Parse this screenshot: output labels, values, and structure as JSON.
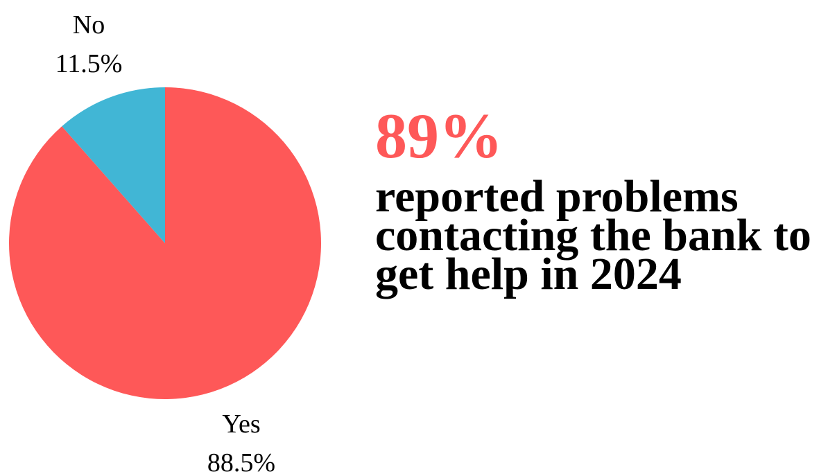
{
  "chart_data": {
    "type": "pie",
    "slices": [
      {
        "label": "Yes",
        "value": 88.5,
        "value_label": "88.5%",
        "color": "#fe5858"
      },
      {
        "label": "No",
        "value": 11.5,
        "value_label": "11.5%",
        "color": "#41b6d5"
      }
    ]
  },
  "headline": {
    "stat": "89%",
    "statement": "reported problems contacting the bank to get help in 2024",
    "stat_color": "#fe5858"
  }
}
